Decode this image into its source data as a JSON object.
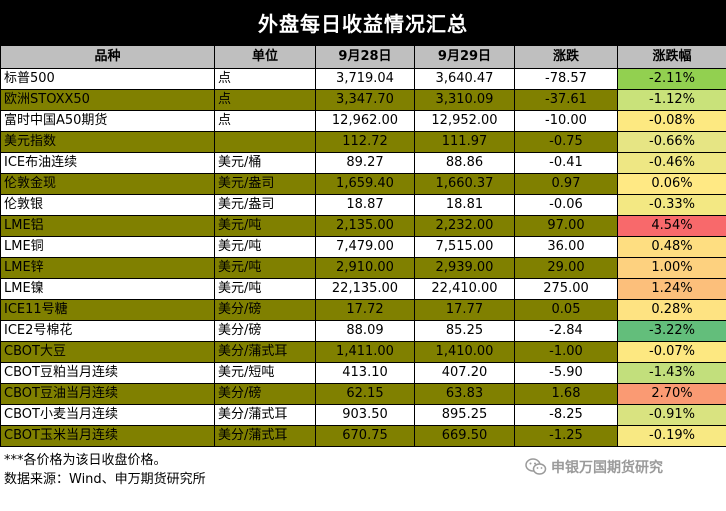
{
  "title": "外盘每日收益情况汇总",
  "headers": [
    "品种",
    "单位",
    "9月28日",
    "9月29日",
    "涨跌",
    "涨跌幅"
  ],
  "rows": [
    {
      "name": "标普500",
      "unit": "点",
      "d1": "3,719.04",
      "d2": "3,640.47",
      "chg": "-78.57",
      "pct": "-2.11%",
      "pct_color": "#92d050"
    },
    {
      "name": "欧洲STOXX50",
      "unit": "点",
      "d1": "3,347.70",
      "d2": "3,310.09",
      "chg": "-37.61",
      "pct": "-1.12%",
      "pct_color": "#c9e27a"
    },
    {
      "name": "富时中国A50期货",
      "unit": "点",
      "d1": "12,962.00",
      "d2": "12,952.00",
      "chg": "-10.00",
      "pct": "-0.08%",
      "pct_color": "#fde981"
    },
    {
      "name": "美元指数",
      "unit": "",
      "d1": "112.72",
      "d2": "111.97",
      "chg": "-0.75",
      "pct": "-0.66%",
      "pct_color": "#e6e584"
    },
    {
      "name": "ICE布油连续",
      "unit": "美元/桶",
      "d1": "89.27",
      "d2": "88.86",
      "chg": "-0.41",
      "pct": "-0.46%",
      "pct_color": "#eee784"
    },
    {
      "name": "伦敦金现",
      "unit": "美元/盎司",
      "d1": "1,659.40",
      "d2": "1,660.37",
      "chg": "0.97",
      "pct": "0.06%",
      "pct_color": "#ffe984"
    },
    {
      "name": "伦敦银",
      "unit": "美元/盎司",
      "d1": "18.87",
      "d2": "18.81",
      "chg": "-0.06",
      "pct": "-0.33%",
      "pct_color": "#f3e883"
    },
    {
      "name": "LME铝",
      "unit": "美元/吨",
      "d1": "2,135.00",
      "d2": "2,232.00",
      "chg": "97.00",
      "pct": "4.54%",
      "pct_color": "#f8696b"
    },
    {
      "name": "LME铜",
      "unit": "美元/吨",
      "d1": "7,479.00",
      "d2": "7,515.00",
      "chg": "36.00",
      "pct": "0.48%",
      "pct_color": "#fede81"
    },
    {
      "name": "LME锌",
      "unit": "美元/吨",
      "d1": "2,910.00",
      "d2": "2,939.00",
      "chg": "29.00",
      "pct": "1.00%",
      "pct_color": "#fdd17f"
    },
    {
      "name": "LME镍",
      "unit": "美元/吨",
      "d1": "22,135.00",
      "d2": "22,410.00",
      "chg": "275.00",
      "pct": "1.24%",
      "pct_color": "#fcbf7b"
    },
    {
      "name": "ICE11号糖",
      "unit": "美分/磅",
      "d1": "17.72",
      "d2": "17.77",
      "chg": "0.05",
      "pct": "0.28%",
      "pct_color": "#fee382"
    },
    {
      "name": "ICE2号棉花",
      "unit": "美分/磅",
      "d1": "88.09",
      "d2": "85.25",
      "chg": "-2.84",
      "pct": "-3.22%",
      "pct_color": "#63be7b"
    },
    {
      "name": "CBOT大豆",
      "unit": "美分/蒲式耳",
      "d1": "1,411.00",
      "d2": "1,410.00",
      "chg": "-1.00",
      "pct": "-0.07%",
      "pct_color": "#fde881"
    },
    {
      "name": "CBOT豆粕当月连续",
      "unit": "美元/短吨",
      "d1": "413.10",
      "d2": "407.20",
      "chg": "-5.90",
      "pct": "-1.43%",
      "pct_color": "#c2df7c"
    },
    {
      "name": "CBOT豆油当月连续",
      "unit": "美分/磅",
      "d1": "62.15",
      "d2": "63.83",
      "chg": "1.68",
      "pct": "2.70%",
      "pct_color": "#fa9a73"
    },
    {
      "name": "CBOT小麦当月连续",
      "unit": "美分/蒲式耳",
      "d1": "903.50",
      "d2": "895.25",
      "chg": "-8.25",
      "pct": "-0.91%",
      "pct_color": "#d9e380"
    },
    {
      "name": "CBOT玉米当月连续",
      "unit": "美分/蒲式耳",
      "d1": "670.75",
      "d2": "669.50",
      "chg": "-1.25",
      "pct": "-0.19%",
      "pct_color": "#f8e983"
    }
  ],
  "notes": {
    "price_note": "***各价格为该日收盘价格。",
    "source": "数据来源：Wind、申万期货研究所",
    "watermark": "申银万国期货研究",
    "watermark_icon": "wechat-icon"
  }
}
